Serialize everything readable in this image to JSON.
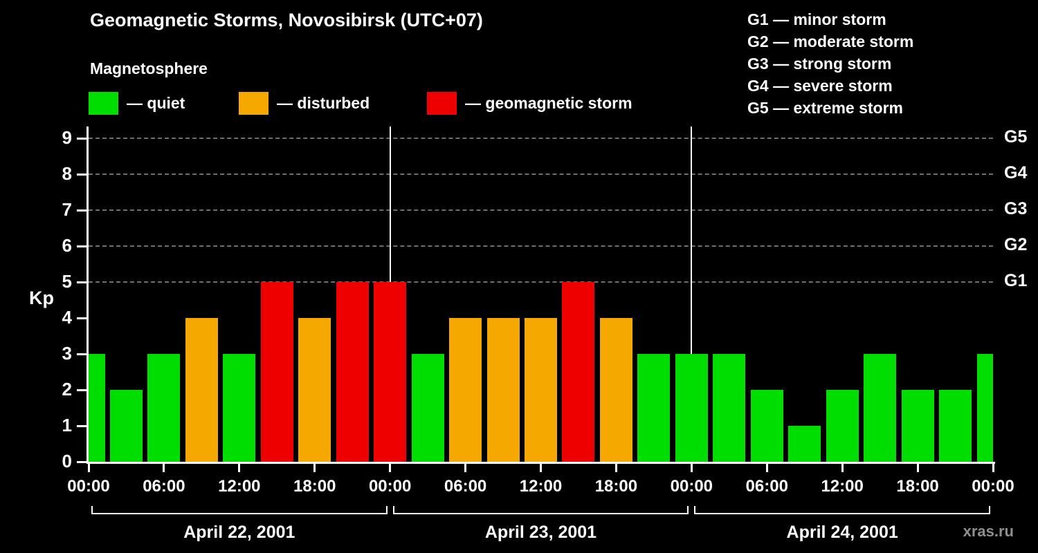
{
  "header": {
    "title": "Geomagnetic Storms, Novosibirsk (UTC+07)"
  },
  "legend": {
    "title": "Magnetosphere",
    "items": [
      {
        "name": "quiet",
        "label": "— quiet",
        "color": "#00dd00"
      },
      {
        "name": "disturbed",
        "label": "— disturbed",
        "color": "#f5a800"
      },
      {
        "name": "storm",
        "label": "— geomagnetic storm",
        "color": "#ee0000"
      }
    ]
  },
  "g_scale_legend": {
    "lines": [
      "G1 — minor storm",
      "G2 — moderate storm",
      "G3 — strong storm",
      "G4 — severe storm",
      "G5 — extreme storm"
    ]
  },
  "axes": {
    "y_label": "Kp",
    "y_ticks": [
      "0",
      "1",
      "2",
      "3",
      "4",
      "5",
      "6",
      "7",
      "8",
      "9"
    ],
    "right_axis_labels": [
      {
        "label": "G1",
        "kp": 5
      },
      {
        "label": "G2",
        "kp": 6
      },
      {
        "label": "G3",
        "kp": 7
      },
      {
        "label": "G4",
        "kp": 8
      },
      {
        "label": "G5",
        "kp": 9
      }
    ],
    "x_tick_labels": [
      "00:00",
      "06:00",
      "12:00",
      "18:00",
      "00:00",
      "06:00",
      "12:00",
      "18:00",
      "00:00",
      "06:00",
      "12:00",
      "18:00",
      "00:00"
    ],
    "day_labels": [
      "April 22, 2001",
      "April 23, 2001",
      "April 24, 2001"
    ]
  },
  "chart_data": {
    "type": "bar",
    "title": "Geomagnetic Storms, Novosibirsk (UTC+07)",
    "ylabel": "Kp",
    "ylim": [
      0,
      9.5
    ],
    "x_unit": "hours from 00:00 April 22, 2001 (UTC+07), 3-hour Kp intervals",
    "x_hours": [
      0,
      3,
      6,
      9,
      12,
      15,
      18,
      21,
      24,
      27,
      30,
      33,
      36,
      39,
      42,
      45,
      48,
      51,
      54,
      57,
      60,
      63,
      66,
      69,
      72
    ],
    "kp_values": [
      3,
      2,
      3,
      4,
      3,
      5,
      4,
      5,
      5,
      3,
      4,
      4,
      4,
      5,
      4,
      3,
      3,
      3,
      2,
      1,
      2,
      3,
      2,
      2,
      3
    ],
    "color_rule": {
      "quiet_max_kp": 3,
      "disturbed_kp": 4,
      "storm_min_kp": 5
    },
    "grid_kp_levels": [
      5,
      6,
      7,
      8,
      9
    ],
    "day_boundaries_hours": [
      24,
      48
    ],
    "grid": "dashed horizontal",
    "legend_position": "top-left and top-right"
  },
  "footer": {
    "watermark": "xras.ru"
  }
}
